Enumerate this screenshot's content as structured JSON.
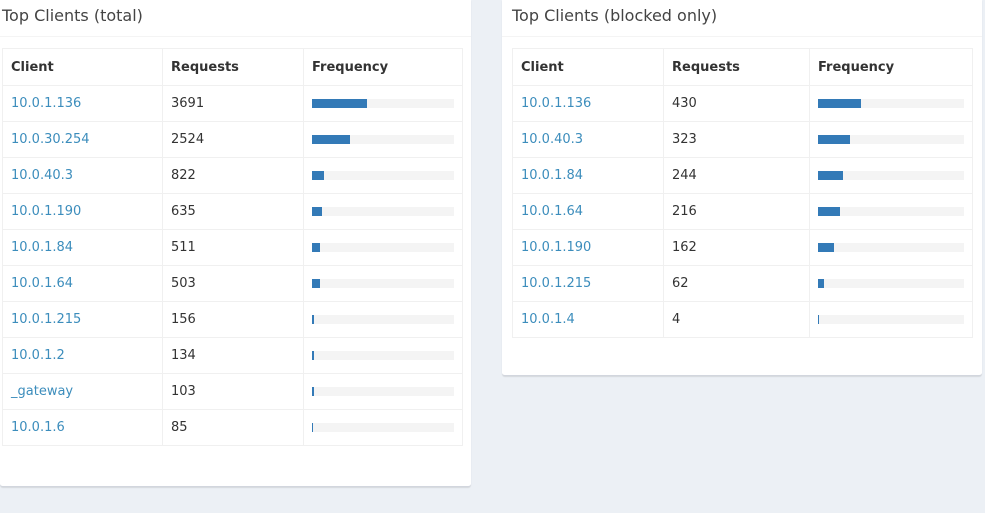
{
  "total": {
    "title": "Top Clients (total)",
    "headers": {
      "client": "Client",
      "requests": "Requests",
      "frequency": "Frequency"
    },
    "rows": [
      {
        "client": "10.0.1.136",
        "requests": "3691",
        "frequency_pct": 39.0
      },
      {
        "client": "10.0.30.254",
        "requests": "2524",
        "frequency_pct": 26.7
      },
      {
        "client": "10.0.40.3",
        "requests": "822",
        "frequency_pct": 8.7
      },
      {
        "client": "10.0.1.190",
        "requests": "635",
        "frequency_pct": 6.7
      },
      {
        "client": "10.0.1.84",
        "requests": "511",
        "frequency_pct": 5.4
      },
      {
        "client": "10.0.1.64",
        "requests": "503",
        "frequency_pct": 5.3
      },
      {
        "client": "10.0.1.215",
        "requests": "156",
        "frequency_pct": 1.6
      },
      {
        "client": "10.0.1.2",
        "requests": "134",
        "frequency_pct": 1.4
      },
      {
        "client": "_gateway",
        "requests": "103",
        "frequency_pct": 1.1
      },
      {
        "client": "10.0.1.6",
        "requests": "85",
        "frequency_pct": 0.9
      }
    ]
  },
  "blocked": {
    "title": "Top Clients (blocked only)",
    "headers": {
      "client": "Client",
      "requests": "Requests",
      "frequency": "Frequency"
    },
    "rows": [
      {
        "client": "10.0.1.136",
        "requests": "430",
        "frequency_pct": 29.6
      },
      {
        "client": "10.0.40.3",
        "requests": "323",
        "frequency_pct": 22.2
      },
      {
        "client": "10.0.1.84",
        "requests": "244",
        "frequency_pct": 16.8
      },
      {
        "client": "10.0.1.64",
        "requests": "216",
        "frequency_pct": 14.9
      },
      {
        "client": "10.0.1.190",
        "requests": "162",
        "frequency_pct": 11.2
      },
      {
        "client": "10.0.1.215",
        "requests": "62",
        "frequency_pct": 4.3
      },
      {
        "client": "10.0.1.4",
        "requests": "4",
        "frequency_pct": 0.3
      }
    ]
  },
  "colors": {
    "bar": "#337ab7",
    "bar_track": "#f4f4f4",
    "link": "#3c8dbc",
    "page_background": "#ecf0f5"
  }
}
